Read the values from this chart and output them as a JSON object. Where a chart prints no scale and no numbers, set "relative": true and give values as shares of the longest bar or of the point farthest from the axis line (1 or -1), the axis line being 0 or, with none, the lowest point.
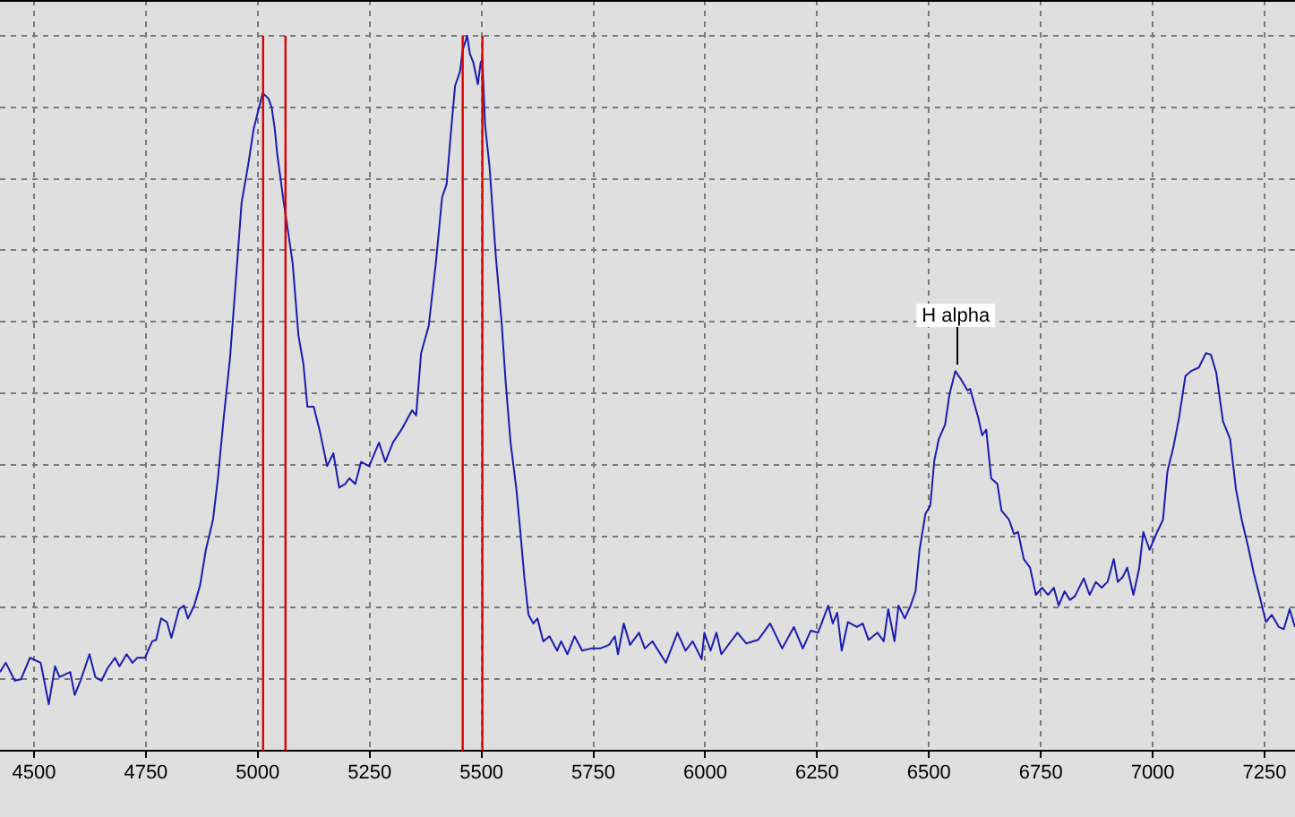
{
  "chart_data": {
    "type": "line",
    "relative": true,
    "color": "#1c1cb0",
    "x": [
      4424,
      4437,
      4457,
      4471,
      4491,
      4515,
      4533,
      4547,
      4557,
      4581,
      4591,
      4604,
      4624,
      4637,
      4651,
      4664,
      4681,
      4691,
      4707,
      4720,
      4731,
      4748,
      4764,
      4773,
      4784,
      4797,
      4807,
      4824,
      4835,
      4844,
      4858,
      4871,
      4884,
      4900,
      4911,
      4924,
      4938,
      4951,
      4964,
      4978,
      4991,
      5011,
      5024,
      5031,
      5038,
      5044,
      5051,
      5058,
      5064,
      5078,
      5091,
      5102,
      5111,
      5125,
      5138,
      5155,
      5169,
      5182,
      5195,
      5205,
      5218,
      5231,
      5249,
      5271,
      5285,
      5302,
      5321,
      5345,
      5354,
      5365,
      5382,
      5398,
      5412,
      5422,
      5432,
      5441,
      5452,
      5458,
      5468,
      5474,
      5482,
      5492,
      5498,
      5502,
      5508,
      5518,
      5532,
      5545,
      5554,
      5565,
      5578,
      5588,
      5596,
      5605,
      5616,
      5625,
      5638,
      5652,
      5669,
      5678,
      5692,
      5708,
      5725,
      5745,
      5765,
      5785,
      5798,
      5805,
      5818,
      5832,
      5852,
      5865,
      5882,
      5912,
      5938,
      5956,
      5972,
      5992,
      5998,
      6012,
      6025,
      6036,
      6072,
      6092,
      6118,
      6145,
      6172,
      6198,
      6218,
      6236,
      6252,
      6275,
      6285,
      6295,
      6305,
      6319,
      6339,
      6352,
      6365,
      6385,
      6399,
      6409,
      6423,
      6432,
      6446,
      6459,
      6470,
      6479,
      6492,
      6503,
      6512,
      6522,
      6536,
      6546,
      6559,
      6572,
      6586,
      6592,
      6610,
      6619,
      6628,
      6639,
      6653,
      6662,
      6679,
      6690,
      6699,
      6712,
      6726,
      6739,
      6753,
      6766,
      6779,
      6790,
      6803,
      6815,
      6826,
      6846,
      6859,
      6873,
      6886,
      6899,
      6913,
      6922,
      6933,
      6943,
      6957,
      6970,
      6979,
      6993,
      7010,
      7023,
      7033,
      7046,
      7059,
      7073,
      7086,
      7103,
      7119,
      7130,
      7142,
      7157,
      7173,
      7186,
      7199,
      7213,
      7226,
      7239,
      7253,
      7266,
      7282,
      7293,
      7306,
      7318
    ],
    "values": [
      0.11,
      0.123,
      0.098,
      0.1,
      0.13,
      0.123,
      0.065,
      0.118,
      0.103,
      0.11,
      0.078,
      0.098,
      0.135,
      0.103,
      0.098,
      0.115,
      0.13,
      0.118,
      0.135,
      0.123,
      0.13,
      0.13,
      0.153,
      0.155,
      0.185,
      0.18,
      0.158,
      0.198,
      0.203,
      0.185,
      0.203,
      0.231,
      0.281,
      0.323,
      0.381,
      0.466,
      0.549,
      0.657,
      0.767,
      0.817,
      0.87,
      0.92,
      0.912,
      0.9,
      0.87,
      0.832,
      0.8,
      0.767,
      0.742,
      0.682,
      0.581,
      0.541,
      0.481,
      0.481,
      0.449,
      0.398,
      0.416,
      0.368,
      0.373,
      0.381,
      0.373,
      0.404,
      0.398,
      0.431,
      0.404,
      0.431,
      0.449,
      0.476,
      0.469,
      0.556,
      0.594,
      0.682,
      0.774,
      0.792,
      0.867,
      0.93,
      0.95,
      0.98,
      1,
      0.975,
      0.962,
      0.932,
      0.962,
      0.967,
      0.875,
      0.817,
      0.692,
      0.599,
      0.516,
      0.431,
      0.366,
      0.298,
      0.241,
      0.19,
      0.178,
      0.185,
      0.153,
      0.16,
      0.14,
      0.153,
      0.135,
      0.16,
      0.14,
      0.143,
      0.143,
      0.148,
      0.16,
      0.135,
      0.178,
      0.148,
      0.165,
      0.143,
      0.153,
      0.123,
      0.165,
      0.14,
      0.153,
      0.128,
      0.165,
      0.14,
      0.165,
      0.135,
      0.165,
      0.15,
      0.155,
      0.178,
      0.143,
      0.173,
      0.143,
      0.168,
      0.165,
      0.203,
      0.178,
      0.193,
      0.14,
      0.18,
      0.173,
      0.178,
      0.155,
      0.165,
      0.153,
      0.198,
      0.153,
      0.203,
      0.185,
      0.203,
      0.223,
      0.281,
      0.331,
      0.343,
      0.406,
      0.436,
      0.456,
      0.499,
      0.531,
      0.519,
      0.504,
      0.506,
      0.466,
      0.441,
      0.449,
      0.381,
      0.373,
      0.336,
      0.323,
      0.303,
      0.306,
      0.268,
      0.256,
      0.218,
      0.228,
      0.218,
      0.228,
      0.203,
      0.223,
      0.211,
      0.216,
      0.241,
      0.218,
      0.236,
      0.228,
      0.236,
      0.268,
      0.236,
      0.243,
      0.256,
      0.218,
      0.256,
      0.306,
      0.281,
      0.306,
      0.323,
      0.391,
      0.424,
      0.466,
      0.524,
      0.531,
      0.536,
      0.556,
      0.554,
      0.529,
      0.461,
      0.436,
      0.366,
      0.323,
      0.286,
      0.248,
      0.216,
      0.18,
      0.19,
      0.173,
      0.17,
      0.198,
      0.173
    ],
    "xlim": [
      4424,
      7318
    ],
    "xticks": [
      4500,
      4750,
      5000,
      5250,
      5500,
      5750,
      6000,
      6250,
      6500,
      6750,
      7000,
      7250
    ],
    "grid": true,
    "tick_labels": "x",
    "ref_lines": [
      {
        "axis": "x",
        "value": 5012,
        "color": "#dd0000"
      },
      {
        "axis": "x",
        "value": 5062,
        "color": "#dd0000"
      },
      {
        "axis": "x",
        "value": 5458,
        "color": "#dd0000"
      },
      {
        "axis": "x",
        "value": 5502,
        "color": "#dd0000"
      }
    ],
    "annotations": [
      {
        "text": "H alpha",
        "x": 6560,
        "y": 0.54
      }
    ]
  }
}
